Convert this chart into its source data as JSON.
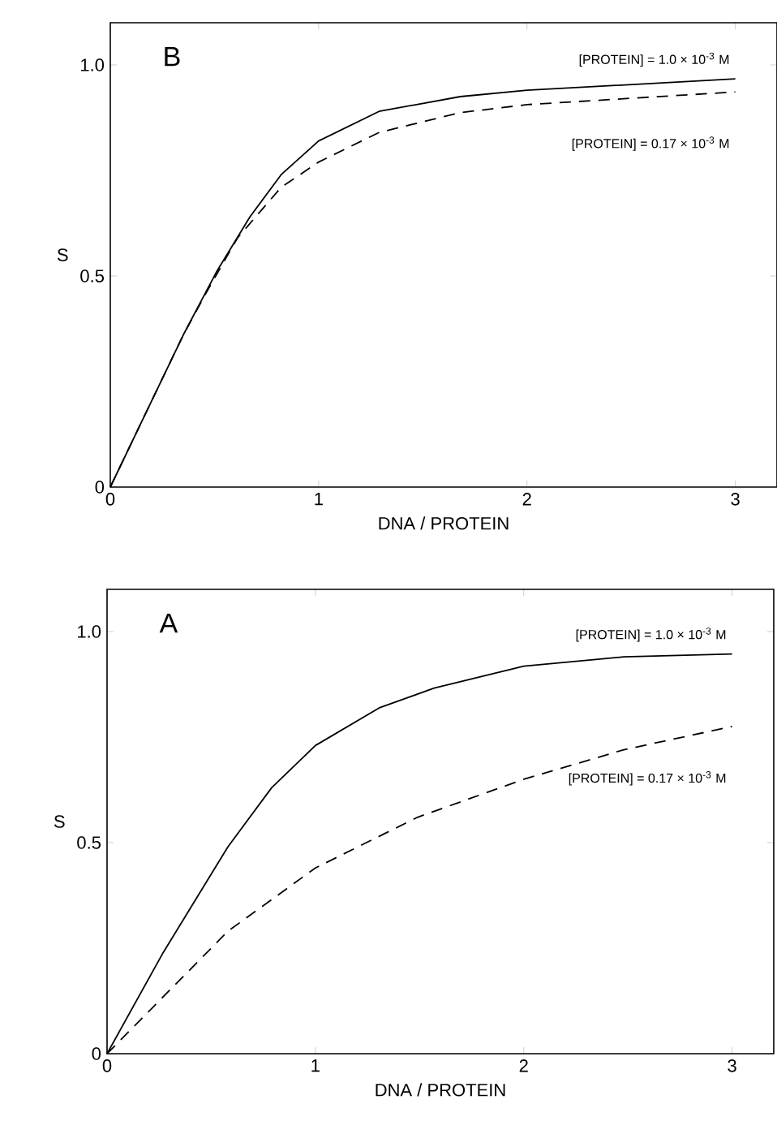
{
  "chart_data": [
    {
      "type": "line",
      "xlabel": "DNA / PROTEIN",
      "ylabel": "S",
      "annotations": [
        "B"
      ],
      "xlim": [
        0,
        3.2
      ],
      "xticks": [
        0,
        1,
        2,
        3
      ],
      "ylim": [
        0,
        1.1
      ],
      "yticks": [
        0,
        0.5,
        {
          "value": 1,
          "label": "1.0"
        }
      ],
      "series": [
        {
          "name": "[PROTEIN] = 1.0 × 10$^{-3}$ M",
          "color": "#000000",
          "line_style": "solid",
          "x": [
            0,
            0.35,
            0.51,
            0.67,
            0.82,
            1.0,
            1.29,
            1.68,
            2.0,
            3.0
          ],
          "values": [
            0,
            0.36,
            0.51,
            0.64,
            0.74,
            0.82,
            0.89,
            0.925,
            0.94,
            0.967
          ]
        },
        {
          "name": "[PROTEIN] = 0.17 × 10$^{-3}$ M",
          "color": "#000000",
          "line_style": "dashed",
          "x": [
            0,
            0.35,
            0.46,
            0.61,
            0.82,
            1.0,
            1.29,
            1.68,
            2.0,
            3.0
          ],
          "values": [
            0,
            0.36,
            0.46,
            0.59,
            0.71,
            0.77,
            0.84,
            0.887,
            0.906,
            0.936
          ]
        }
      ]
    },
    {
      "type": "line",
      "xlabel": "DNA / PROTEIN",
      "ylabel": "S",
      "annotations": [
        "A"
      ],
      "xlim": [
        0,
        3.2
      ],
      "xticks": [
        0,
        1,
        2,
        3
      ],
      "ylim": [
        0,
        1.1
      ],
      "yticks": [
        0,
        0.5,
        {
          "value": 1,
          "label": "1.0"
        }
      ],
      "series": [
        {
          "name": "[PROTEIN] = 1.0 × 10$^{-3}$ M",
          "color": "#000000",
          "line_style": "solid",
          "x": [
            0,
            0.27,
            0.58,
            0.79,
            1.0,
            1.31,
            1.57,
            2.0,
            2.48,
            3.0
          ],
          "values": [
            0,
            0.24,
            0.49,
            0.63,
            0.73,
            0.82,
            0.866,
            0.918,
            0.94,
            0.947
          ]
        },
        {
          "name": "[PROTEIN] = 0.17 × 10$^{-3}$ M",
          "color": "#000000",
          "line_style": "dashed",
          "x": [
            0,
            0.3,
            0.58,
            1.0,
            1.49,
            2.0,
            2.48,
            3.0
          ],
          "values": [
            0,
            0.15,
            0.29,
            0.44,
            0.56,
            0.65,
            0.72,
            0.775
          ]
        }
      ]
    }
  ]
}
